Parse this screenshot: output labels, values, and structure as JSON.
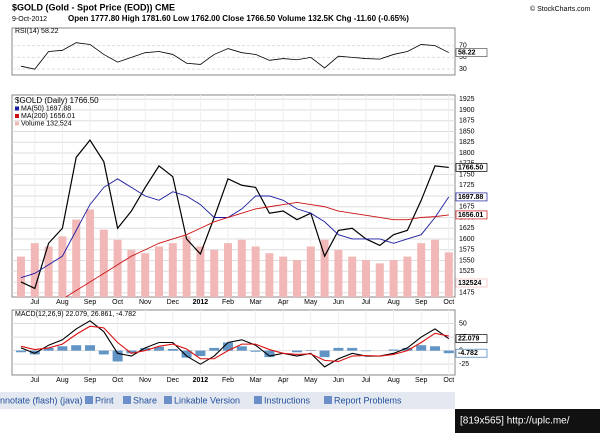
{
  "header": {
    "title": "$GOLD (Gold - Spot Price (EOD)) CME",
    "date": "9-Oct-2012",
    "quote": "Open 1777.80 High 1781.60 Low 1762.00 Close 1766.50 Volume 132.5K Chg -11.60 (-0.65%)",
    "credit": "© StockCharts.com"
  },
  "chart_data": [
    {
      "type": "line",
      "title": "RSI(14) 58.22",
      "ylim": [
        20,
        100
      ],
      "yticks": [
        30,
        50,
        70
      ],
      "grid": true,
      "series": [
        {
          "color": "#000000",
          "end_label": "58.22",
          "values": [
            35,
            30,
            60,
            62,
            75,
            72,
            55,
            42,
            50,
            58,
            60,
            55,
            40,
            38,
            55,
            65,
            58,
            55,
            45,
            48,
            46,
            50,
            32,
            52,
            50,
            48,
            47,
            55,
            60,
            72,
            70,
            58.22
          ]
        }
      ]
    },
    {
      "type": "price",
      "title": "$GOLD (Daily) 1766.50",
      "ylim": [
        1465,
        1935
      ],
      "yticks": [
        1475,
        1500,
        1525,
        1550,
        1575,
        1600,
        1625,
        1650,
        1675,
        1700,
        1725,
        1750,
        1775,
        1800,
        1825,
        1850,
        1875,
        1900,
        1925
      ],
      "y2lim": [
        0,
        600000
      ],
      "grid": true,
      "categories": [
        null,
        "Jul",
        null,
        "Aug",
        null,
        "Sep",
        null,
        "Oct",
        null,
        "Nov",
        null,
        "Dec",
        null,
        "2012",
        null,
        "Feb",
        null,
        "Mar",
        null,
        "Apr",
        null,
        "May",
        null,
        "Jun",
        null,
        "Jul",
        null,
        "Aug",
        null,
        "Sep",
        null,
        "Oct"
      ],
      "series": [
        {
          "color": "#000000",
          "end_label": "1766.50",
          "values": [
            1500,
            1485,
            1590,
            1625,
            1790,
            1830,
            1780,
            1625,
            1665,
            1720,
            1770,
            1745,
            1600,
            1565,
            1650,
            1740,
            1725,
            1720,
            1660,
            1665,
            1645,
            1660,
            1560,
            1620,
            1625,
            1600,
            1585,
            1610,
            1620,
            1690,
            1770,
            1766.5
          ]
        },
        {
          "name": "MA(50) 1697.88",
          "color": "#1a1aa0",
          "end_label": "1697.88",
          "values": [
            1510,
            1520,
            1540,
            1560,
            1620,
            1680,
            1720,
            1740,
            1720,
            1700,
            1690,
            1710,
            1700,
            1680,
            1650,
            1650,
            1670,
            1700,
            1700,
            1690,
            1670,
            1660,
            1640,
            1610,
            1600,
            1600,
            1600,
            1590,
            1600,
            1610,
            1650,
            1697.88
          ]
        },
        {
          "name": "MA(200) 1656.01",
          "color": "#cc1111",
          "end_label": "1656.01",
          "values": [
            1420,
            1430,
            1445,
            1460,
            1480,
            1500,
            1520,
            1540,
            1560,
            1575,
            1590,
            1600,
            1610,
            1625,
            1640,
            1650,
            1660,
            1670,
            1675,
            1680,
            1685,
            1680,
            1675,
            1665,
            1660,
            1655,
            1650,
            1645,
            1645,
            1650,
            1652,
            1656.01
          ]
        },
        {
          "name": "Volume 132,524",
          "color": "#f2b8b8",
          "axis": "y2",
          "end_label": "132524",
          "values": [
            120000,
            160000,
            150000,
            180000,
            230000,
            260000,
            200000,
            170000,
            140000,
            130000,
            150000,
            160000,
            180000,
            150000,
            140000,
            160000,
            170000,
            150000,
            130000,
            120000,
            110000,
            150000,
            170000,
            140000,
            120000,
            110000,
            100000,
            110000,
            120000,
            160000,
            170000,
            132524
          ]
        }
      ]
    },
    {
      "type": "macd",
      "title": "MACD(12,26,9) 22.079, 26.861, -4.782",
      "ylim": [
        -45,
        75
      ],
      "yticks": [
        -25,
        0,
        25,
        50
      ],
      "grid": true,
      "categories": [
        null,
        "Jul",
        null,
        "Aug",
        null,
        "Sep",
        null,
        "Oct",
        null,
        "Nov",
        null,
        "Dec",
        null,
        "2012",
        null,
        "Feb",
        null,
        "Mar",
        null,
        "Apr",
        null,
        "May",
        null,
        "Jun",
        null,
        "Jul",
        null,
        "Aug",
        null,
        "Sep",
        null,
        "Oct"
      ],
      "series": [
        {
          "color": "#000000",
          "end_label": "22.079",
          "values": [
            5,
            -5,
            10,
            20,
            40,
            55,
            35,
            -5,
            -10,
            5,
            15,
            15,
            -10,
            -25,
            -10,
            15,
            20,
            10,
            -10,
            -5,
            -10,
            -5,
            -30,
            -15,
            -5,
            -10,
            -10,
            -5,
            5,
            25,
            40,
            22.079
          ]
        },
        {
          "color": "#dd1111",
          "values": [
            8,
            2,
            5,
            12,
            30,
            45,
            42,
            15,
            -5,
            0,
            8,
            12,
            3,
            -15,
            -15,
            0,
            12,
            12,
            2,
            -5,
            -7,
            -6,
            -18,
            -20,
            -10,
            -9,
            -10,
            -7,
            0,
            15,
            32,
            26.861
          ]
        },
        {
          "color": "#3a7ab8",
          "bar": true,
          "end_label": "-4.782",
          "values": [
            -3,
            -7,
            5,
            8,
            10,
            10,
            -7,
            -20,
            -5,
            5,
            7,
            3,
            -13,
            -10,
            5,
            15,
            8,
            -2,
            -12,
            0,
            -3,
            1,
            -12,
            5,
            5,
            -1,
            0,
            2,
            5,
            10,
            8,
            -4.782
          ]
        }
      ]
    }
  ],
  "footer": {
    "links": [
      "nnotate (flash) (java)",
      "Print",
      "Share",
      "Linkable Version",
      "Instructions",
      "Report Problems"
    ],
    "badge": "[819x565] http://uplc.me/"
  }
}
